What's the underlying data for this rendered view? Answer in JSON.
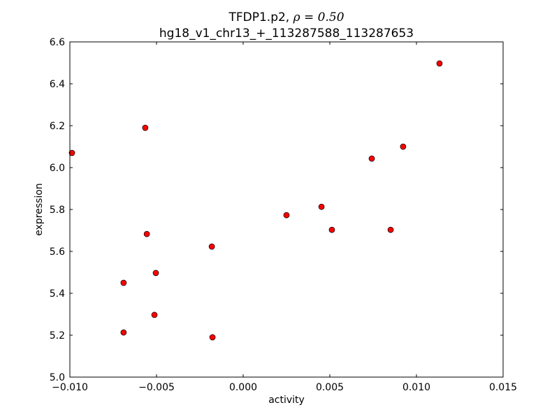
{
  "chart_data": {
    "type": "scatter",
    "title_line1_prefix": "TFDP1.p2, ",
    "title_rho": "ρ = 0.50",
    "title_line2": "hg18_v1_chr13_+_113287588_113287653",
    "xlabel": "activity",
    "ylabel": "expression",
    "xlim": [
      -0.01,
      0.015
    ],
    "ylim": [
      5.0,
      6.6
    ],
    "xticks": [
      -0.01,
      -0.005,
      0.0,
      0.005,
      0.01,
      0.015
    ],
    "xtick_labels": [
      "−0.010",
      "−0.005",
      "0.000",
      "0.005",
      "0.010",
      "0.015"
    ],
    "yticks": [
      5.0,
      5.2,
      5.4,
      5.6,
      5.8,
      6.0,
      6.2,
      6.4,
      6.6
    ],
    "ytick_labels": [
      "5.0",
      "5.2",
      "5.4",
      "5.6",
      "5.8",
      "6.0",
      "6.2",
      "6.4",
      "6.6"
    ],
    "marker_color": "#ff0000",
    "grid": false,
    "points": [
      {
        "x": -0.00988,
        "y": 6.07
      },
      {
        "x": -0.00565,
        "y": 6.19
      },
      {
        "x": -0.00556,
        "y": 5.683
      },
      {
        "x": -0.0069,
        "y": 5.45
      },
      {
        "x": -0.00504,
        "y": 5.497
      },
      {
        "x": -0.00512,
        "y": 5.297
      },
      {
        "x": -0.0069,
        "y": 5.213
      },
      {
        "x": -0.00181,
        "y": 5.623
      },
      {
        "x": -0.00177,
        "y": 5.19
      },
      {
        "x": 0.0025,
        "y": 5.773
      },
      {
        "x": 0.00452,
        "y": 5.813
      },
      {
        "x": 0.00512,
        "y": 5.703
      },
      {
        "x": 0.00742,
        "y": 6.043
      },
      {
        "x": 0.00923,
        "y": 6.1
      },
      {
        "x": 0.00851,
        "y": 5.703
      },
      {
        "x": 0.01133,
        "y": 6.497
      }
    ]
  }
}
